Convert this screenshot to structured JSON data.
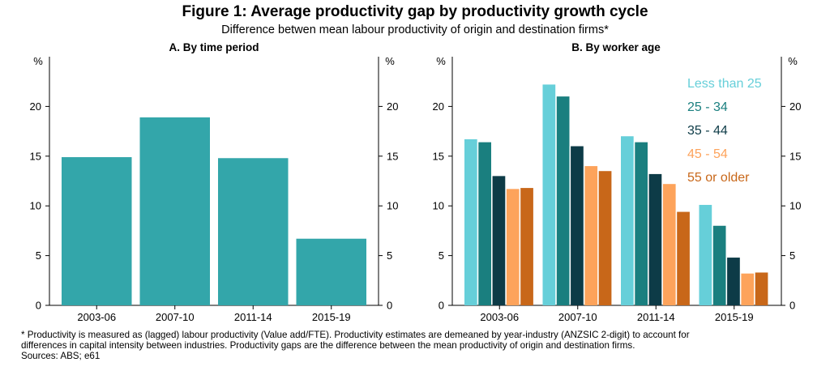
{
  "title": "Figure 1: Average productivity gap by productivity growth cycle",
  "subtitle": "Difference betwen mean labour productivity of origin and destination firms*",
  "colors": {
    "panel_a": "#33a6aa",
    "age_series": [
      "#66cfd9",
      "#1a7f7f",
      "#0d3b47",
      "#fda35b",
      "#c86719"
    ]
  },
  "chart_data": [
    {
      "type": "bar",
      "title": "A. By time period",
      "ylabel": "%",
      "ylabel_right": "%",
      "ylim": [
        0,
        25
      ],
      "yticks": [
        0,
        5,
        10,
        15,
        20
      ],
      "categories": [
        "2003-06",
        "2007-10",
        "2011-14",
        "2015-19"
      ],
      "values": [
        14.9,
        18.9,
        14.8,
        6.7
      ],
      "grid": false
    },
    {
      "type": "bar",
      "title": "B. By worker age",
      "ylabel": "%",
      "ylabel_right": "%",
      "ylim": [
        0,
        25
      ],
      "yticks": [
        0,
        5,
        10,
        15,
        20
      ],
      "categories": [
        "2003-06",
        "2007-10",
        "2011-14",
        "2015-19"
      ],
      "legend_position": "top-right",
      "series": [
        {
          "name": "Less than 25",
          "values": [
            16.7,
            22.2,
            17.0,
            10.1
          ]
        },
        {
          "name": "25 - 34",
          "values": [
            16.4,
            21.0,
            16.4,
            8.0
          ]
        },
        {
          "name": "35 - 44",
          "values": [
            13.0,
            16.0,
            13.2,
            4.8
          ]
        },
        {
          "name": "45 - 54",
          "values": [
            11.7,
            14.0,
            12.2,
            3.2
          ]
        },
        {
          "name": "55 or older",
          "values": [
            11.8,
            13.5,
            9.4,
            3.3
          ]
        }
      ],
      "grid": false
    }
  ],
  "notes": {
    "line1": "* Productivity is measured as (lagged) labour productivity (Value add/FTE). Productivity estimates are demeaned by year-industry (ANZSIC 2-digit) to account for",
    "line2": "differences in capital intensity between industries. Productivity gaps are the difference between the mean productivity of origin and destination firms.",
    "sources": "Sources: ABS; e61"
  }
}
